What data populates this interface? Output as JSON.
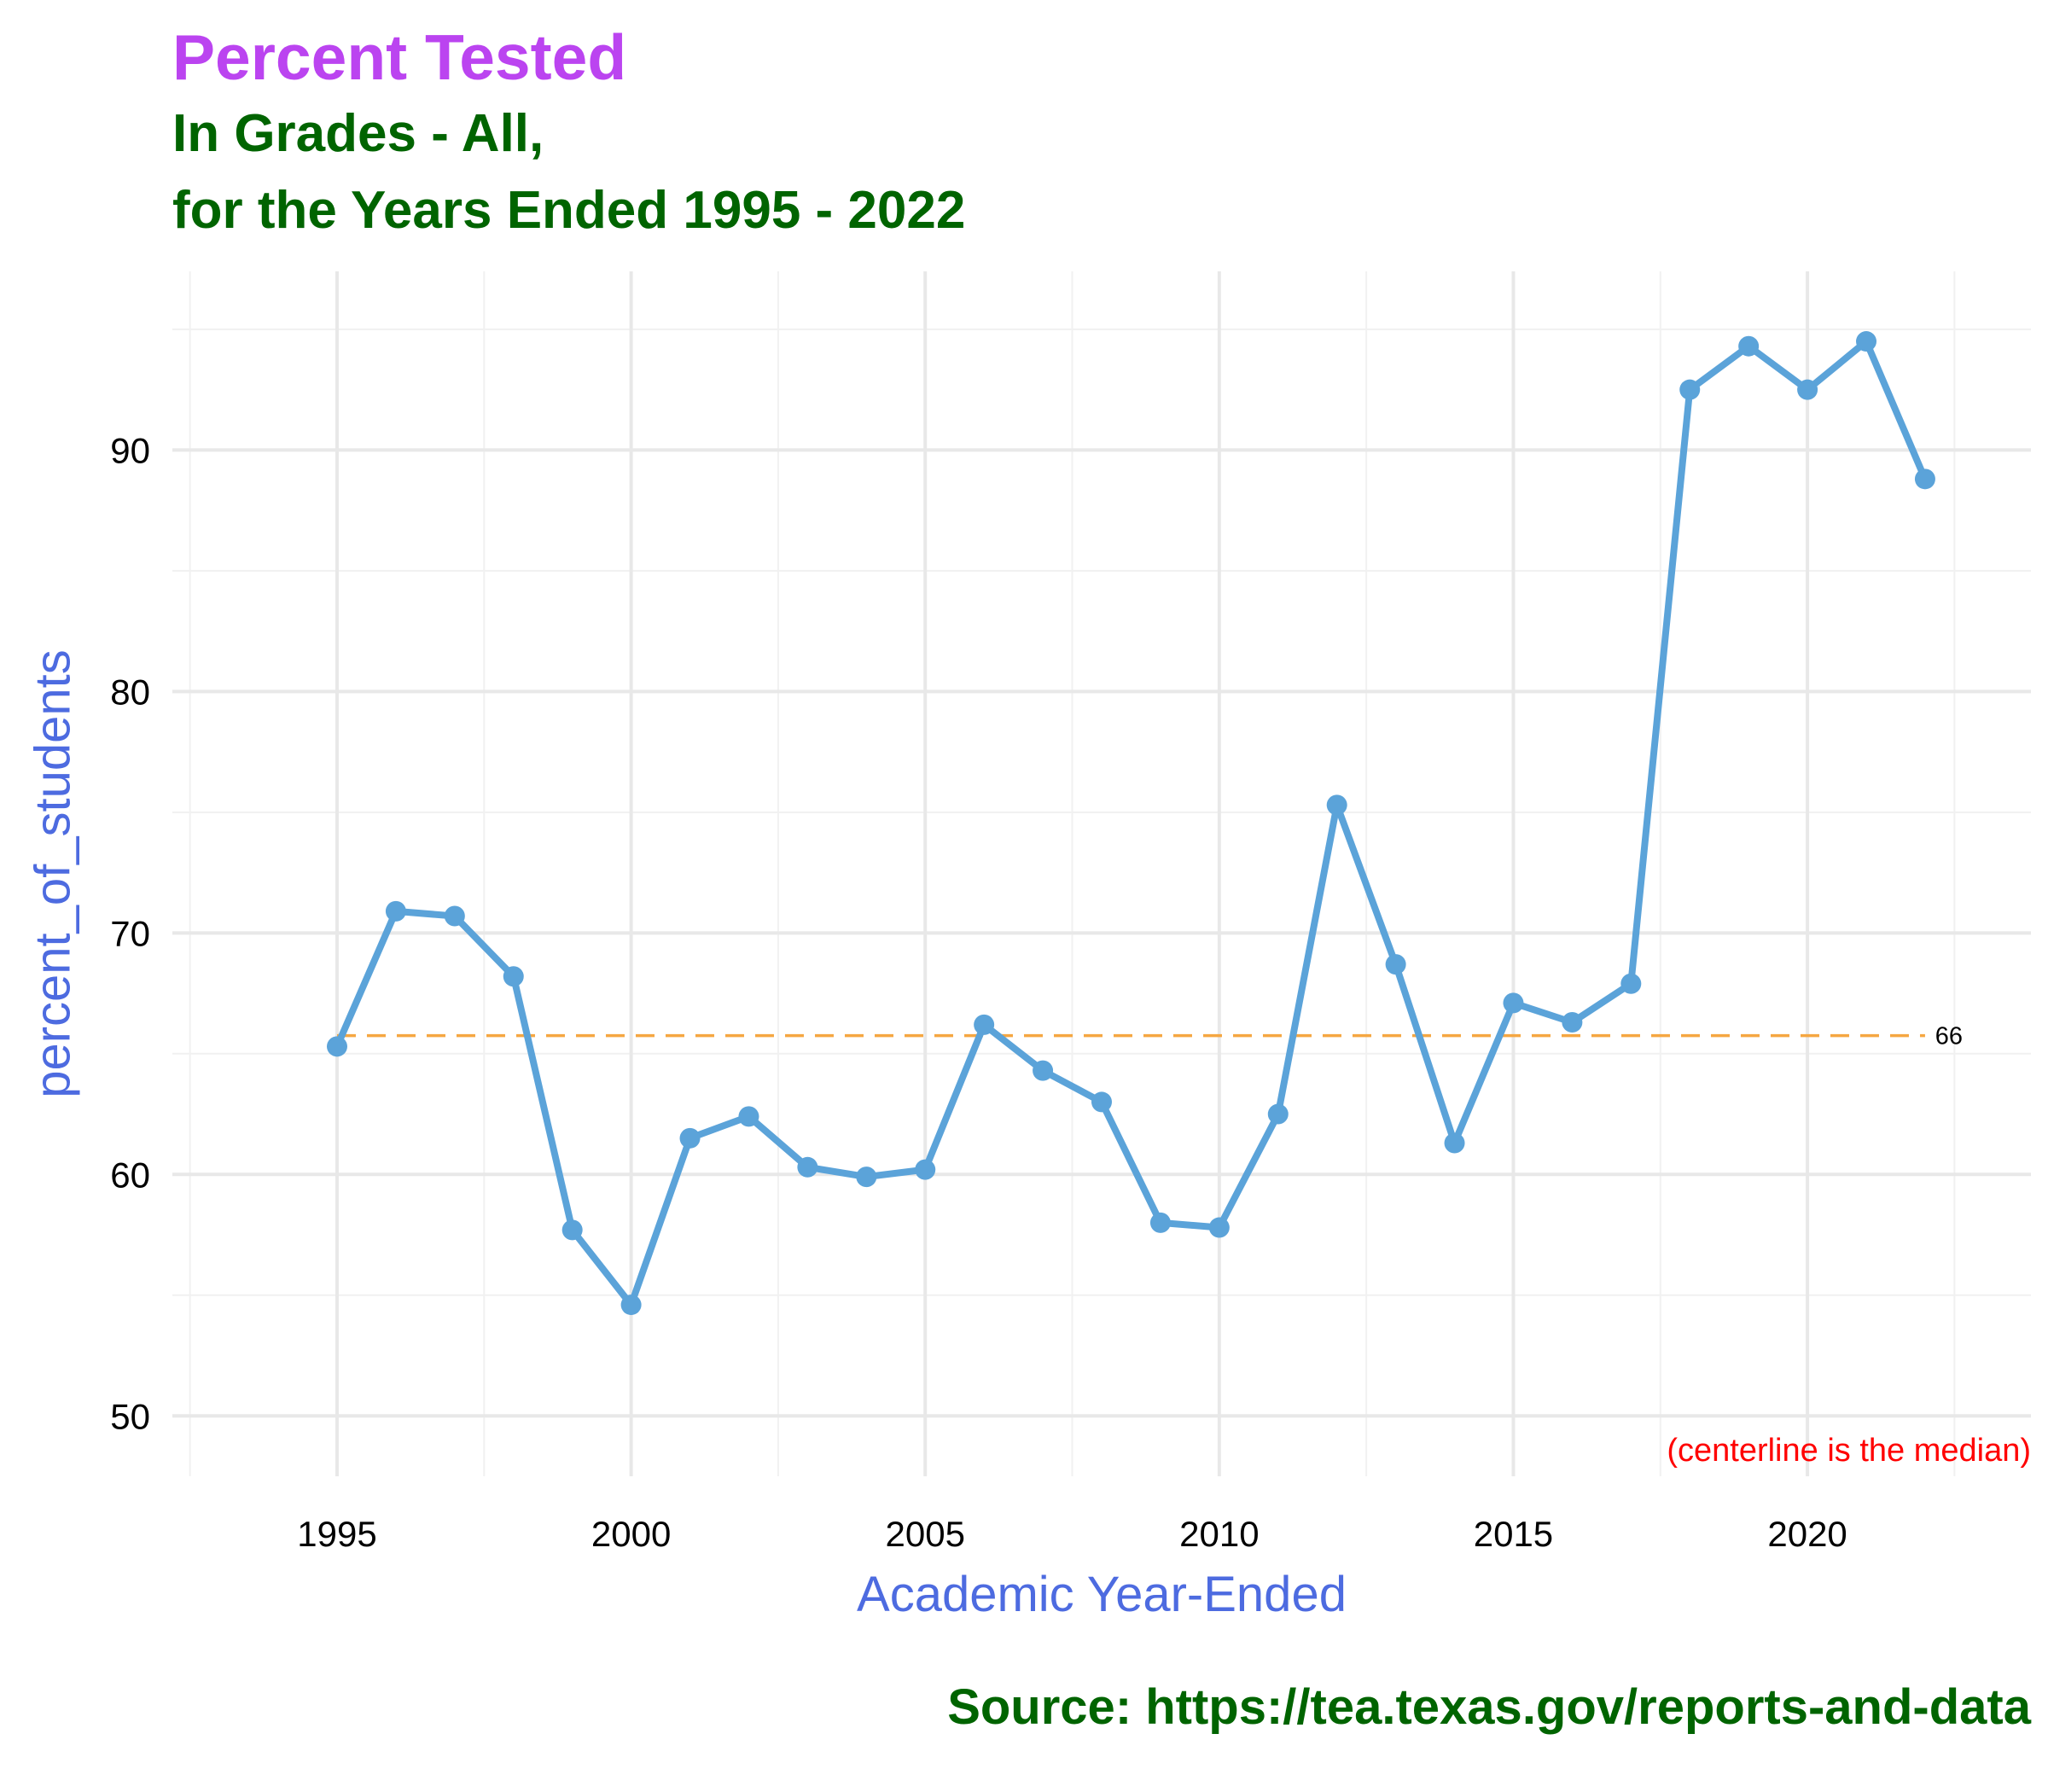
{
  "colors": {
    "title": "#BB44F0",
    "subtitle": "#006400",
    "caption": "#006400",
    "axis_title": "#4D6BE0",
    "line": "#5BA3D9",
    "median": "#F5A742",
    "note": "#FF0000",
    "grid_major": "#E8E8E8",
    "grid_minor": "#F1F1F1"
  },
  "chart_data": {
    "type": "line",
    "title": "Percent Tested",
    "subtitle": "In Grades - All,\nfor the Years Ended 1995 - 2022",
    "caption": "Source:  https://tea.texas.gov/reports-and-data",
    "xlabel": "Academic Year-Ended",
    "ylabel": "percent_of_students",
    "xlim": [
      1992.2,
      2023.8
    ],
    "ylim": [
      47.5,
      97.4
    ],
    "x_ticks": [
      1995,
      2000,
      2005,
      2010,
      2015,
      2020
    ],
    "y_ticks": [
      50,
      60,
      70,
      80,
      90
    ],
    "grid": true,
    "x": [
      1995,
      1996,
      1997,
      1998,
      1999,
      2000,
      2001,
      2002,
      2003,
      2004,
      2005,
      2006,
      2007,
      2008,
      2009,
      2010,
      2011,
      2012,
      2013,
      2014,
      2015,
      2016,
      2017,
      2018,
      2019,
      2020,
      2021,
      2022
    ],
    "values": [
      65.3,
      70.9,
      70.7,
      68.2,
      57.7,
      54.6,
      61.5,
      62.4,
      60.3,
      59.9,
      60.2,
      66.2,
      64.3,
      63.0,
      58.0,
      57.8,
      62.5,
      75.3,
      68.7,
      61.3,
      67.1,
      66.3,
      67.9,
      92.5,
      94.3,
      92.5,
      94.5,
      88.8
    ],
    "median": 65.75,
    "median_label": "66",
    "note": "(centerline is the median)"
  }
}
